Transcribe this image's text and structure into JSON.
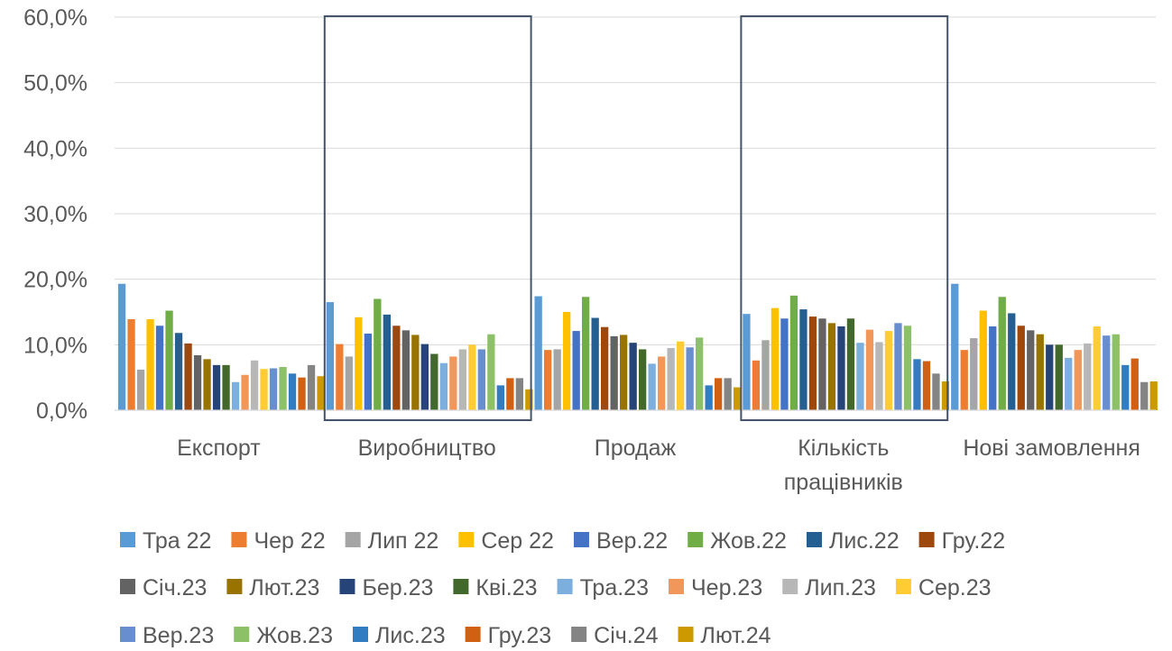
{
  "chart_data": {
    "type": "bar",
    "title": "",
    "xlabel": "",
    "ylabel": "",
    "ylim": [
      0,
      60
    ],
    "ytick_labels": [
      "0,0%",
      "10,0%",
      "20,0%",
      "30,0%",
      "40,0%",
      "50,0%",
      "60,0%"
    ],
    "grid": true,
    "legend_position": "bottom",
    "categories": [
      "Експорт",
      "Виробництво",
      "Продаж",
      "Кількість працівників",
      "Нові замовлення"
    ],
    "highlighted_categories": [
      "Виробництво",
      "Кількість працівників"
    ],
    "series": [
      {
        "name": "Тра 22",
        "color": "#5B9BD5",
        "values": [
          19.3,
          16.5,
          17.4,
          14.7,
          19.3
        ]
      },
      {
        "name": "Чер 22",
        "color": "#ED7D31",
        "values": [
          13.9,
          10.1,
          9.2,
          7.6,
          9.2
        ]
      },
      {
        "name": "Лип 22",
        "color": "#A5A5A5",
        "values": [
          6.2,
          8.2,
          9.3,
          10.7,
          11.0
        ]
      },
      {
        "name": "Сер 22",
        "color": "#FFC000",
        "values": [
          13.9,
          14.2,
          15.0,
          15.6,
          15.2
        ]
      },
      {
        "name": "Вер.22",
        "color": "#4472C4",
        "values": [
          12.9,
          11.7,
          12.1,
          14.0,
          12.8
        ]
      },
      {
        "name": "Жов.22",
        "color": "#70AD47",
        "values": [
          15.2,
          17.0,
          17.3,
          17.5,
          17.3
        ]
      },
      {
        "name": "Лис.22",
        "color": "#255E91",
        "values": [
          11.8,
          14.6,
          14.1,
          15.4,
          14.8
        ]
      },
      {
        "name": "Гру.22",
        "color": "#9E480E",
        "values": [
          10.2,
          12.9,
          12.7,
          14.3,
          12.9
        ]
      },
      {
        "name": "Січ.23",
        "color": "#636363",
        "values": [
          8.4,
          12.2,
          11.3,
          14.0,
          12.2
        ]
      },
      {
        "name": "Лют.23",
        "color": "#997300",
        "values": [
          7.8,
          11.5,
          11.5,
          13.3,
          11.6
        ]
      },
      {
        "name": "Бер.23",
        "color": "#264478",
        "values": [
          6.9,
          10.1,
          10.3,
          12.8,
          10.0
        ]
      },
      {
        "name": "Кві.23",
        "color": "#43682B",
        "values": [
          6.9,
          8.6,
          9.3,
          14.0,
          10.0
        ]
      },
      {
        "name": "Тра.23",
        "color": "#7CAFDD",
        "values": [
          4.3,
          7.2,
          7.1,
          10.3,
          8.0
        ]
      },
      {
        "name": "Чер.23",
        "color": "#F1975A",
        "values": [
          5.4,
          8.2,
          8.2,
          12.3,
          9.2
        ]
      },
      {
        "name": "Лип.23",
        "color": "#B7B7B7",
        "values": [
          7.6,
          9.3,
          9.5,
          10.4,
          10.2
        ]
      },
      {
        "name": "Сер.23",
        "color": "#FFCD33",
        "values": [
          6.3,
          10.0,
          10.5,
          12.1,
          12.8
        ]
      },
      {
        "name": "Вер.23",
        "color": "#698ED0",
        "values": [
          6.4,
          9.3,
          9.6,
          13.3,
          11.4
        ]
      },
      {
        "name": "Жов.23",
        "color": "#8CC168",
        "values": [
          6.6,
          11.6,
          11.1,
          12.9,
          11.6
        ]
      },
      {
        "name": "Лис.23",
        "color": "#327DC2",
        "values": [
          5.6,
          3.8,
          3.8,
          7.8,
          6.9
        ]
      },
      {
        "name": "Гру.23",
        "color": "#D26012",
        "values": [
          5.0,
          4.9,
          4.9,
          7.5,
          7.9
        ]
      },
      {
        "name": "Січ.24",
        "color": "#848484",
        "values": [
          6.9,
          4.9,
          4.9,
          5.6,
          4.3
        ]
      },
      {
        "name": "Лют.24",
        "color": "#CC9A00",
        "values": [
          5.2,
          3.2,
          3.5,
          4.4,
          4.4
        ]
      }
    ]
  }
}
